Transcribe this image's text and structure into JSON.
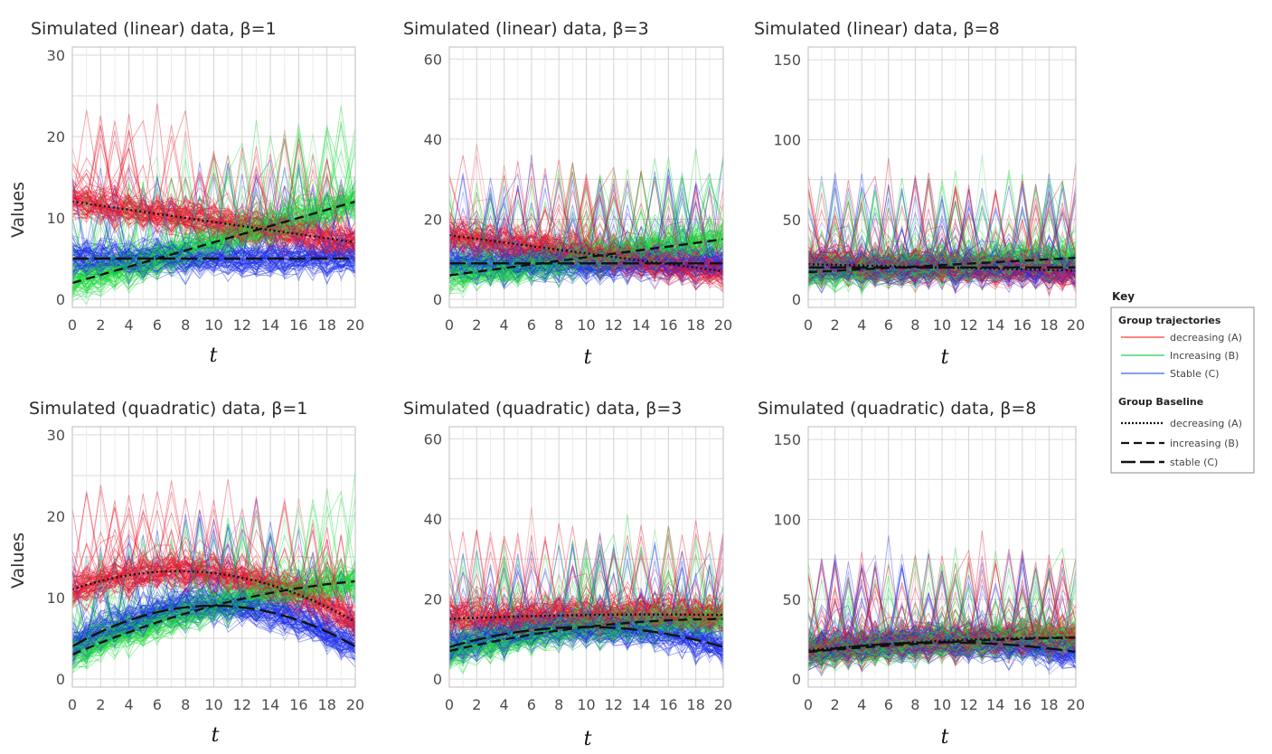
{
  "chart_data": [
    {
      "type": "line",
      "title": "Simulated (linear) data, β=1",
      "xlabel": "t",
      "ylabel": "Values",
      "xlim": [
        0,
        20
      ],
      "ylim": [
        -1,
        31
      ],
      "yticks": [
        0,
        10,
        20,
        30
      ],
      "baselines": {
        "A": [
          12,
          7
        ],
        "B": [
          2,
          12
        ],
        "C": [
          5,
          5
        ]
      }
    },
    {
      "type": "line",
      "title": "Simulated (linear) data, β=3",
      "xlabel": "t",
      "ylabel": "",
      "xlim": [
        0,
        20
      ],
      "ylim": [
        -2,
        63
      ],
      "yticks": [
        0,
        20,
        40,
        60
      ],
      "baselines": {
        "A": [
          16,
          7
        ],
        "B": [
          6,
          15
        ],
        "C": [
          9,
          9
        ]
      }
    },
    {
      "type": "line",
      "title": "Simulated (linear) data, β=8",
      "xlabel": "t",
      "ylabel": "",
      "xlim": [
        0,
        20
      ],
      "ylim": [
        -5,
        158
      ],
      "yticks": [
        0,
        50,
        100,
        150
      ],
      "baselines": {
        "A": [
          22,
          18
        ],
        "B": [
          17,
          26
        ],
        "C": [
          20,
          20
        ]
      }
    },
    {
      "type": "line",
      "title": "Simulated (quadratic) data, β=1",
      "xlabel": "t",
      "ylabel": "Values",
      "xlim": [
        0,
        20
      ],
      "ylim": [
        -1,
        31
      ],
      "yticks": [
        0,
        10,
        20,
        30
      ],
      "baselines": {
        "A": [
          11,
          13,
          7
        ],
        "B": [
          3,
          9,
          12
        ],
        "C": [
          4,
          9,
          4
        ]
      }
    },
    {
      "type": "line",
      "title": "Simulated (quadratic) data, β=3",
      "xlabel": "t",
      "ylabel": "",
      "xlim": [
        0,
        20
      ],
      "ylim": [
        -2,
        63
      ],
      "yticks": [
        0,
        20,
        40,
        60
      ],
      "baselines": {
        "A": [
          15,
          16,
          16
        ],
        "B": [
          7,
          13,
          15
        ],
        "C": [
          8,
          13,
          8
        ]
      }
    },
    {
      "type": "line",
      "title": "Simulated (quadratic) data, β=8",
      "xlabel": "t",
      "ylabel": "",
      "xlim": [
        0,
        20
      ],
      "ylim": [
        -5,
        158
      ],
      "yticks": [
        0,
        50,
        100,
        150
      ],
      "baselines": {
        "A": [
          18,
          24,
          26
        ],
        "B": [
          17,
          23,
          26
        ],
        "C": [
          17,
          23,
          17
        ]
      }
    }
  ],
  "xticks": [
    0,
    2,
    4,
    6,
    8,
    10,
    12,
    14,
    16,
    18,
    20
  ],
  "legend": {
    "title": "Key",
    "trajectories_heading": "Group trajectories",
    "trajectories": [
      {
        "label": "decreasing (A)",
        "color": "#ff5a5a"
      },
      {
        "label": "Increasing (B)",
        "color": "#4cd96a"
      },
      {
        "label": "Stable (C)",
        "color": "#5a7df0"
      }
    ],
    "baseline_heading": "Group Baseline",
    "baselines": [
      {
        "label": "decreasing (A)",
        "dash": "dotted"
      },
      {
        "label": "increasing (B)",
        "dash": "dashed"
      },
      {
        "label": "stable (C)",
        "dash": "longdash"
      }
    ]
  },
  "colors": {
    "A": "#e8122a",
    "B": "#18d83a",
    "C": "#1a2ee6"
  }
}
